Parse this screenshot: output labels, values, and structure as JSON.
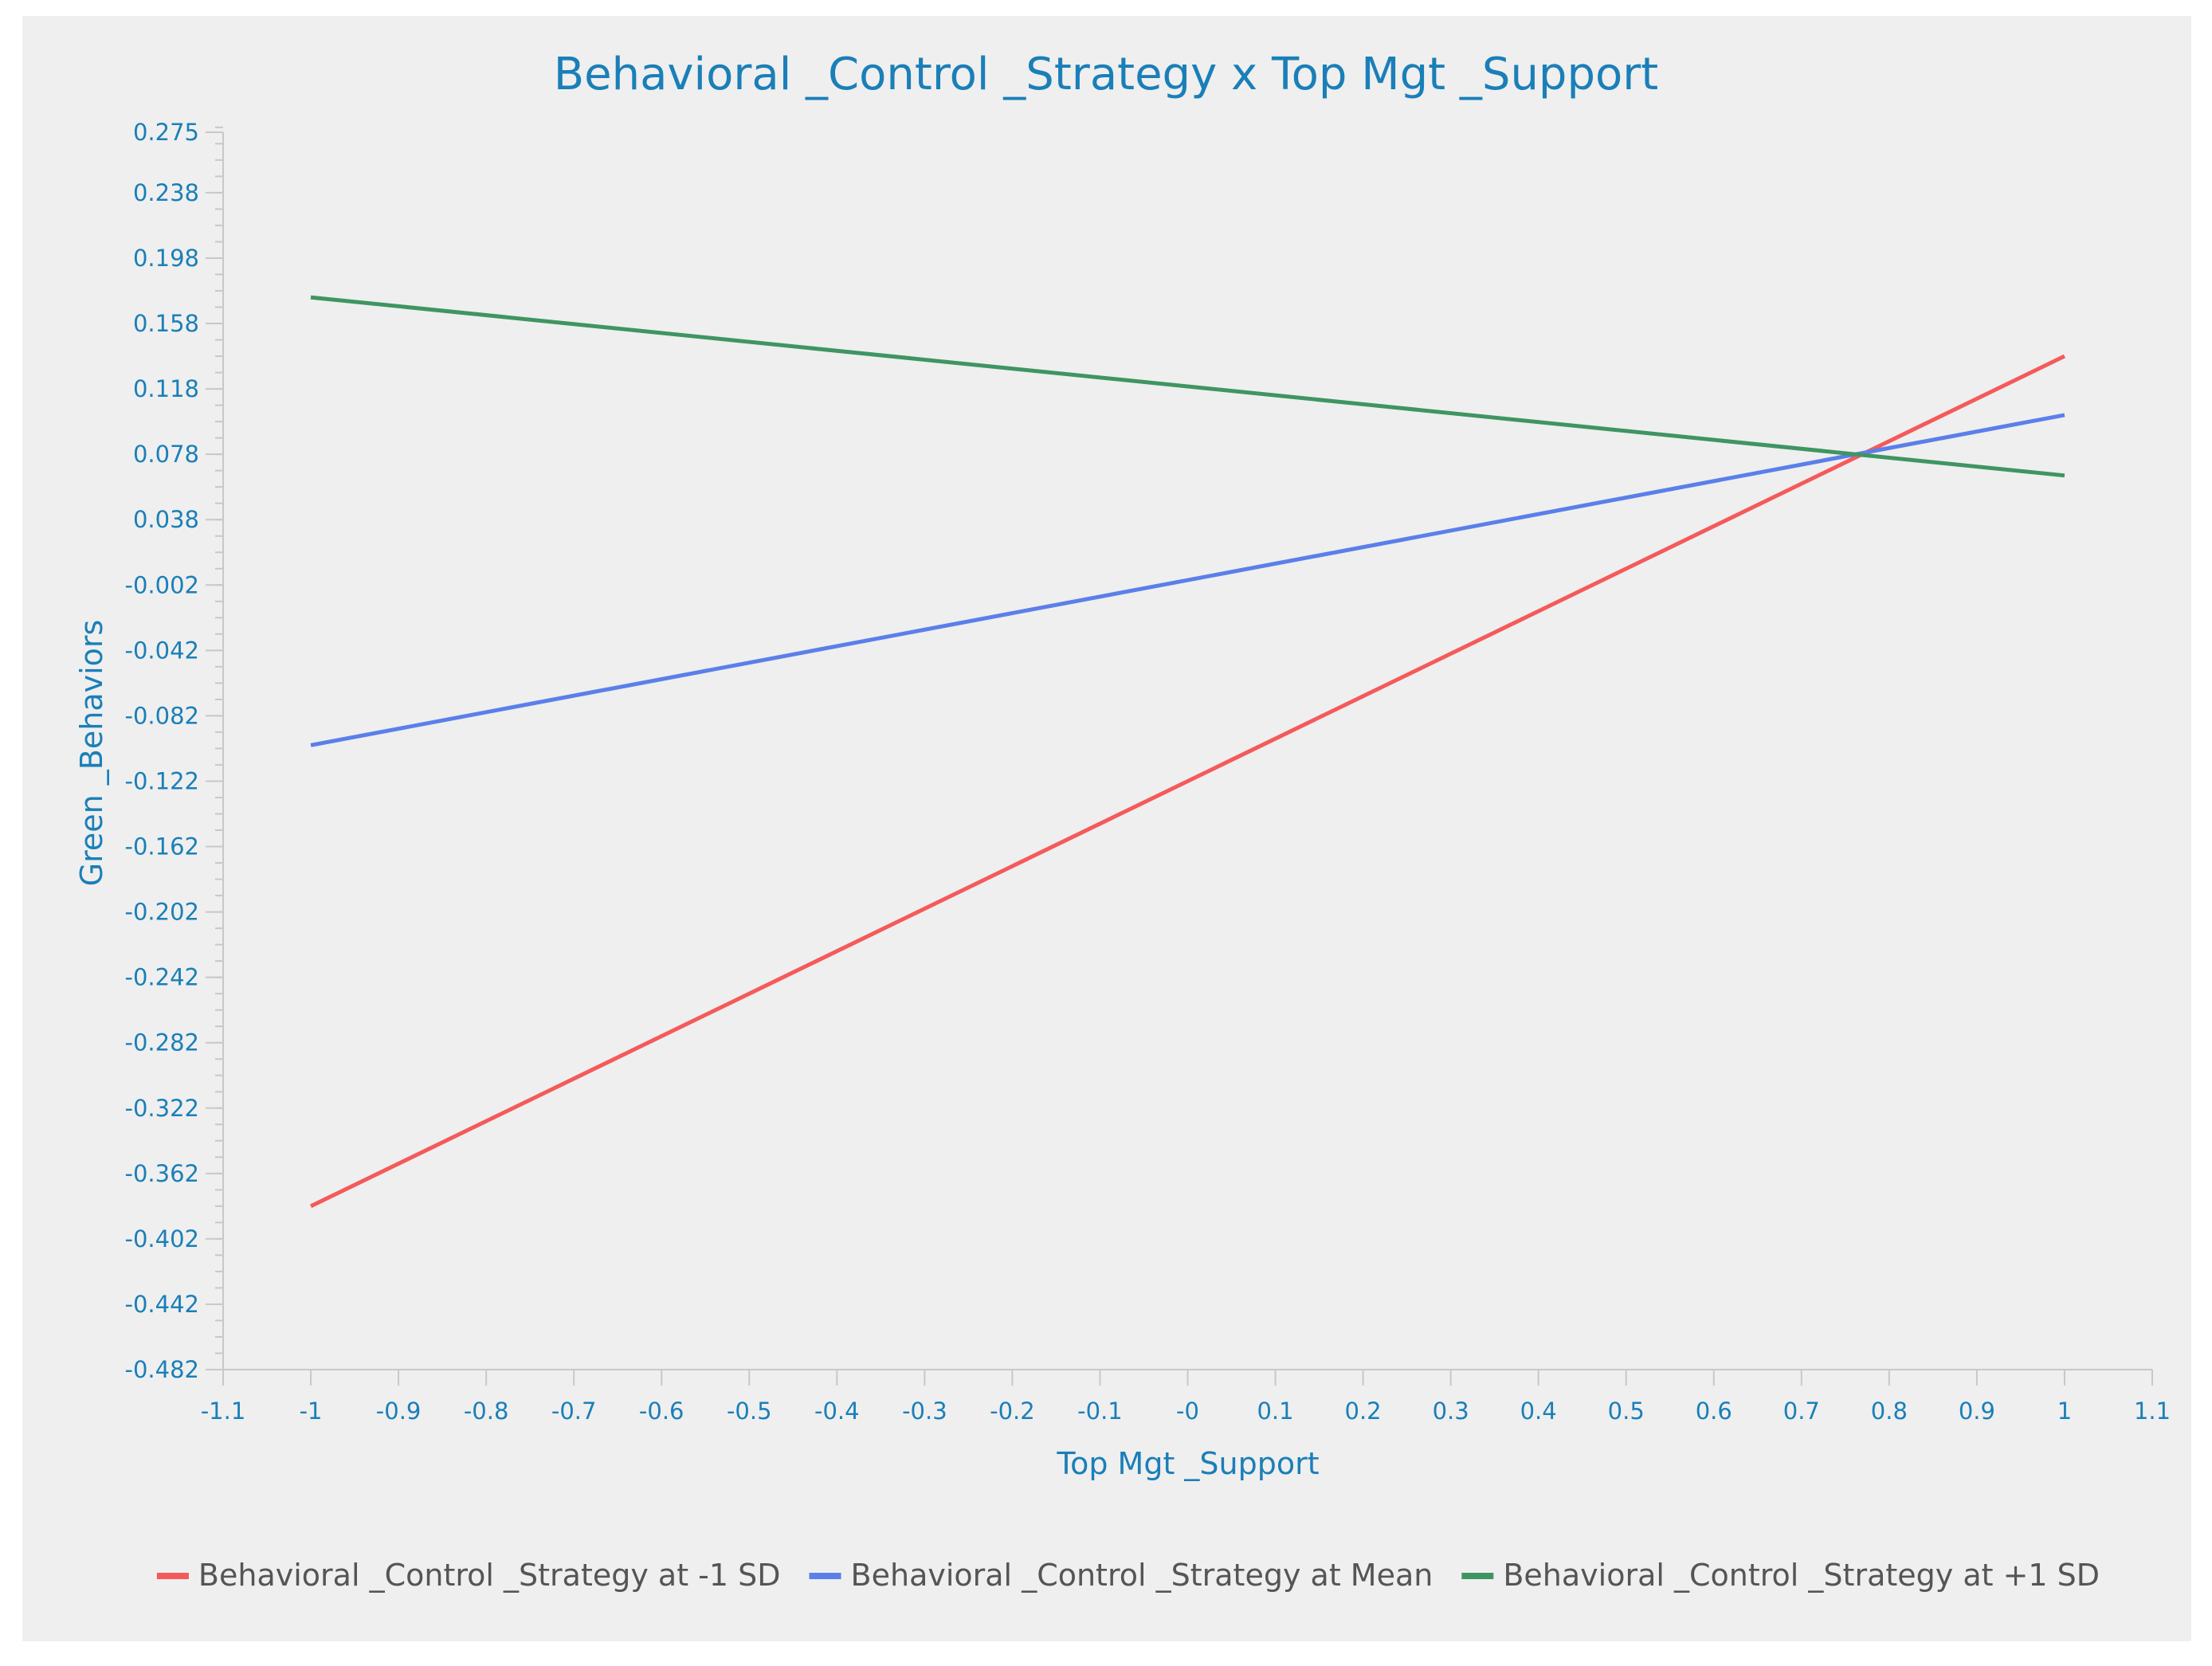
{
  "chart_data": {
    "type": "line",
    "title": "Behavioral _Control _Strategy x Top Mgt _Support",
    "xlabel": "Top Mgt _Support",
    "ylabel": "Green _Behaviors",
    "xlim": [
      -1.1,
      1.1
    ],
    "ylim": [
      -0.482,
      0.275
    ],
    "x_ticks": [
      -1.1,
      -1,
      -0.9,
      -0.8,
      -0.7,
      -0.6,
      -0.5,
      -0.4,
      -0.3,
      -0.2,
      -0.1,
      0,
      0.1,
      0.2,
      0.3,
      0.4,
      0.5,
      0.6,
      0.7,
      0.8,
      0.9,
      1,
      1.1
    ],
    "x_tick_labels": [
      "-1.1",
      "-1",
      "-0.9",
      "-0.8",
      "-0.7",
      "-0.6",
      "-0.5",
      "-0.4",
      "-0.3",
      "-0.2",
      "-0.1",
      "-0",
      "0.1",
      "0.2",
      "0.3",
      "0.4",
      "0.5",
      "0.6",
      "0.7",
      "0.8",
      "0.9",
      "1",
      "1.1"
    ],
    "y_ticks": [
      0.275,
      0.238,
      0.198,
      0.158,
      0.118,
      0.078,
      0.038,
      -0.002,
      -0.042,
      -0.082,
      -0.122,
      -0.162,
      -0.202,
      -0.242,
      -0.282,
      -0.322,
      -0.362,
      -0.402,
      -0.442,
      -0.482
    ],
    "y_tick_labels": [
      "0.275",
      "0.238",
      "0.198",
      "0.158",
      "0.118",
      "0.078",
      "0.038",
      "-0.002",
      "-0.042",
      "-0.082",
      "-0.122",
      "-0.162",
      "-0.202",
      "-0.242",
      "-0.282",
      "-0.322",
      "-0.362",
      "-0.402",
      "-0.442",
      "-0.482"
    ],
    "y_minor_step": 0.01,
    "x": [
      -1,
      1
    ],
    "series": [
      {
        "name": "Behavioral _Control _Strategy at -1 SD",
        "color": "#f55a5a",
        "values": [
          -0.382,
          0.138
        ]
      },
      {
        "name": "Behavioral _Control _Strategy at Mean",
        "color": "#5b7fea",
        "values": [
          -0.1,
          0.102
        ]
      },
      {
        "name": "Behavioral _Control _Strategy at +1 SD",
        "color": "#3f9562",
        "values": [
          0.174,
          0.065
        ]
      }
    ],
    "legend_position": "bottom-center",
    "grid": false
  },
  "colors": {
    "background": "#efefef",
    "axis": "#c8c8c8",
    "text": "#1a7fb8",
    "legend_text": "#555555"
  }
}
